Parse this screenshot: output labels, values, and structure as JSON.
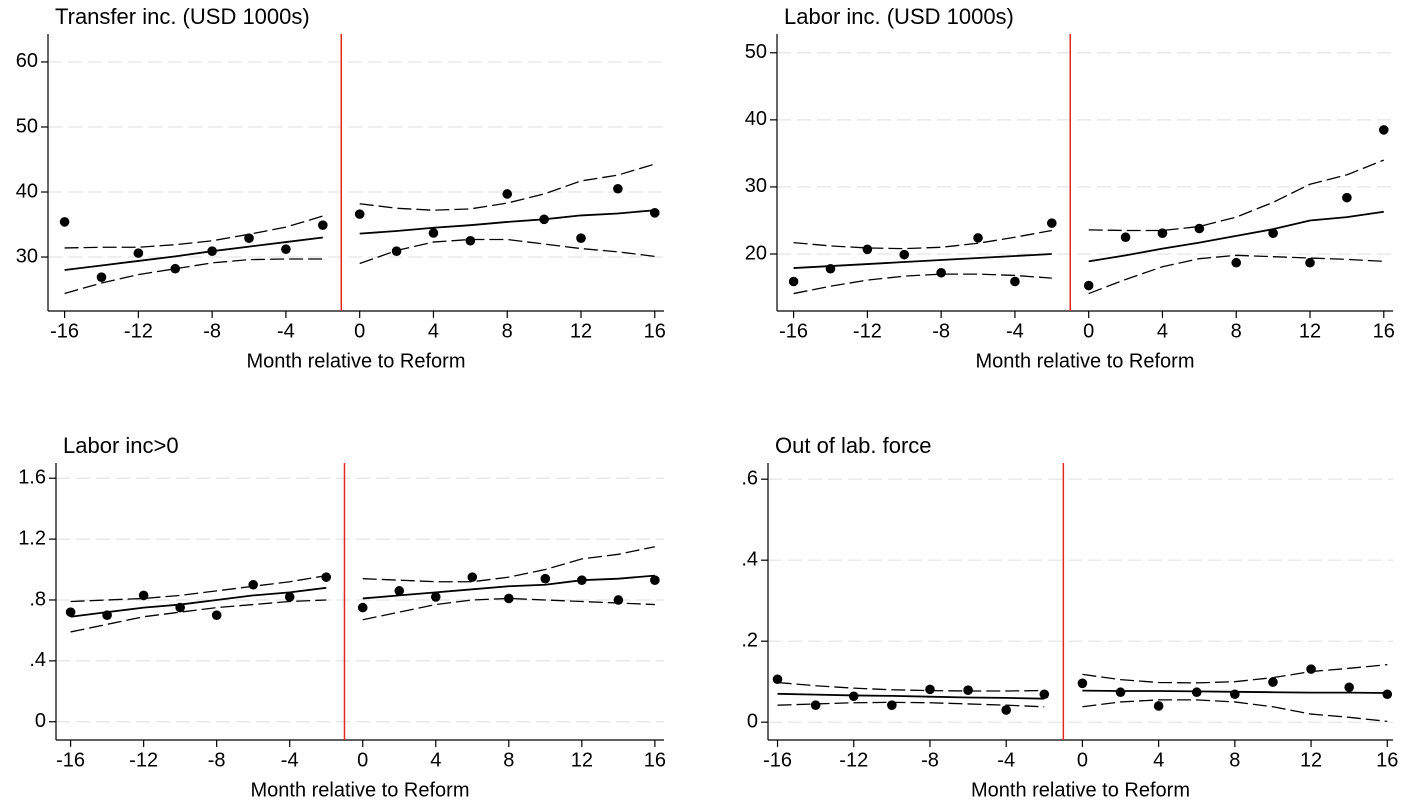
{
  "chart_data": [
    {
      "type": "scatter",
      "title": "Transfer inc. (USD 1000s)",
      "xlabel": "Month relative to Reform",
      "x": [
        -16,
        -14,
        -12,
        -10,
        -8,
        -6,
        -4,
        -2,
        0,
        2,
        4,
        6,
        8,
        10,
        12,
        14,
        16
      ],
      "values": [
        35.4,
        26.9,
        30.6,
        28.2,
        30.9,
        32.9,
        31.2,
        34.9,
        36.6,
        30.9,
        33.7,
        32.5,
        39.7,
        35.8,
        32.9,
        40.5,
        36.8
      ],
      "fit": [
        28.0,
        28.7,
        29.4,
        30.1,
        30.9,
        31.6,
        32.3,
        33.0,
        33.6,
        34.0,
        34.5,
        34.9,
        35.4,
        35.8,
        36.4,
        36.7,
        37.2
      ],
      "ci_high": [
        31.4,
        31.5,
        31.5,
        31.9,
        32.5,
        33.5,
        34.6,
        36.3,
        38.2,
        37.5,
        37.2,
        37.4,
        38.3,
        39.7,
        41.7,
        42.6,
        44.3
      ],
      "ci_low": [
        24.4,
        26.0,
        27.3,
        28.2,
        29.1,
        29.6,
        29.7,
        29.7,
        29.0,
        31.0,
        32.3,
        32.7,
        32.7,
        32.0,
        31.3,
        30.8,
        30.1
      ],
      "xlim": [
        -16.9,
        16.5
      ],
      "ylim": [
        21.7,
        64.3
      ],
      "xticks": [
        -16,
        -12,
        -8,
        -4,
        0,
        4,
        8,
        12,
        16
      ],
      "yticks": [
        30,
        40,
        50,
        60
      ],
      "grid": true,
      "vline": -1,
      "vline_color": "#e02a20",
      "color": "#000000"
    },
    {
      "type": "scatter",
      "title": "Labor inc. (USD 1000s)",
      "xlabel": "Month relative to Reform",
      "x": [
        -16,
        -14,
        -12,
        -10,
        -8,
        -6,
        -4,
        -2,
        0,
        2,
        4,
        6,
        8,
        10,
        12,
        14,
        16
      ],
      "values": [
        15.9,
        17.8,
        20.7,
        19.9,
        17.2,
        22.4,
        15.9,
        24.6,
        15.3,
        22.5,
        23.1,
        23.8,
        18.7,
        23.1,
        18.7,
        28.4,
        38.5
      ],
      "fit": [
        17.9,
        18.2,
        18.5,
        18.8,
        19.1,
        19.4,
        19.7,
        20.0,
        18.9,
        19.8,
        20.8,
        21.7,
        22.7,
        23.7,
        25.0,
        25.5,
        26.3
      ],
      "ci_high": [
        21.7,
        21.2,
        20.9,
        20.8,
        21.0,
        21.6,
        22.5,
        23.5,
        23.6,
        23.5,
        23.5,
        24.1,
        25.5,
        27.7,
        30.4,
        31.8,
        34.0
      ],
      "ci_low": [
        14.1,
        15.2,
        16.1,
        16.7,
        17.0,
        17.0,
        16.8,
        16.4,
        14.1,
        16.2,
        18.1,
        19.3,
        19.8,
        19.6,
        19.4,
        19.2,
        18.9
      ],
      "xlim": [
        -16.9,
        16.5
      ],
      "ylim": [
        11.5,
        52.8
      ],
      "xticks": [
        -16,
        -12,
        -8,
        -4,
        0,
        4,
        8,
        12,
        16
      ],
      "yticks": [
        20,
        30,
        40,
        50
      ],
      "grid": true,
      "vline": -1,
      "vline_color": "#e02a20",
      "color": "#000000"
    },
    {
      "type": "scatter",
      "title": "Labor inc>0",
      "xlabel": "Month relative to Reform",
      "x": [
        -16,
        -14,
        -12,
        -10,
        -8,
        -6,
        -4,
        -2,
        0,
        2,
        4,
        6,
        8,
        10,
        12,
        14,
        16
      ],
      "values": [
        0.72,
        0.7,
        0.83,
        0.75,
        0.7,
        0.9,
        0.82,
        0.95,
        0.75,
        0.86,
        0.82,
        0.95,
        0.81,
        0.94,
        0.93,
        0.8,
        0.93
      ],
      "fit": [
        0.69,
        0.72,
        0.75,
        0.77,
        0.8,
        0.83,
        0.85,
        0.88,
        0.81,
        0.83,
        0.85,
        0.87,
        0.89,
        0.9,
        0.93,
        0.94,
        0.96
      ],
      "ci_high": [
        0.79,
        0.8,
        0.81,
        0.83,
        0.86,
        0.89,
        0.92,
        0.96,
        0.94,
        0.93,
        0.92,
        0.92,
        0.95,
        1.0,
        1.07,
        1.1,
        1.15
      ],
      "ci_low": [
        0.59,
        0.64,
        0.69,
        0.72,
        0.75,
        0.77,
        0.79,
        0.8,
        0.67,
        0.72,
        0.77,
        0.8,
        0.81,
        0.8,
        0.79,
        0.78,
        0.77
      ],
      "xlim": [
        -16.8,
        16.5
      ],
      "ylim": [
        -0.12,
        1.7
      ],
      "xticks": [
        -16,
        -12,
        -8,
        -4,
        0,
        4,
        8,
        12,
        16
      ],
      "yticks": [
        0,
        {
          "value": 0.4,
          "label": ".4"
        },
        {
          "value": 0.8,
          "label": ".8"
        },
        1.2,
        1.6
      ],
      "grid": true,
      "vline": -1,
      "vline_color": "#e02a20",
      "color": "#000000"
    },
    {
      "type": "scatter",
      "title": "Out of lab. force",
      "xlabel": "Month relative to Reform",
      "x": [
        -16,
        -14,
        -12,
        -10,
        -8,
        -6,
        -4,
        -2,
        0,
        2,
        4,
        6,
        8,
        10,
        12,
        14,
        16
      ],
      "values": [
        0.106,
        0.042,
        0.064,
        0.042,
        0.081,
        0.079,
        0.03,
        0.069,
        0.096,
        0.074,
        0.04,
        0.074,
        0.069,
        0.099,
        0.131,
        0.086,
        0.069
      ],
      "fit": [
        0.07,
        0.068,
        0.066,
        0.065,
        0.063,
        0.061,
        0.06,
        0.058,
        0.078,
        0.077,
        0.077,
        0.076,
        0.075,
        0.074,
        0.073,
        0.073,
        0.072
      ],
      "ci_high": [
        0.098,
        0.09,
        0.084,
        0.08,
        0.078,
        0.077,
        0.077,
        0.078,
        0.118,
        0.105,
        0.098,
        0.097,
        0.1,
        0.11,
        0.125,
        0.133,
        0.142
      ],
      "ci_low": [
        0.042,
        0.045,
        0.048,
        0.049,
        0.048,
        0.045,
        0.042,
        0.038,
        0.038,
        0.05,
        0.055,
        0.055,
        0.05,
        0.038,
        0.02,
        0.012,
        0.002
      ],
      "xlim": [
        -16.5,
        16.3
      ],
      "ylim": [
        -0.044,
        0.64
      ],
      "xticks": [
        -16,
        -12,
        -8,
        -4,
        0,
        4,
        8,
        12,
        16
      ],
      "yticks": [
        0,
        {
          "value": 0.2,
          "label": ".2"
        },
        {
          "value": 0.4,
          "label": ".4"
        },
        {
          "value": 0.6,
          "label": ".6"
        }
      ],
      "grid": true,
      "vline": -1,
      "vline_color": "#e02a20",
      "color": "#000000"
    }
  ]
}
